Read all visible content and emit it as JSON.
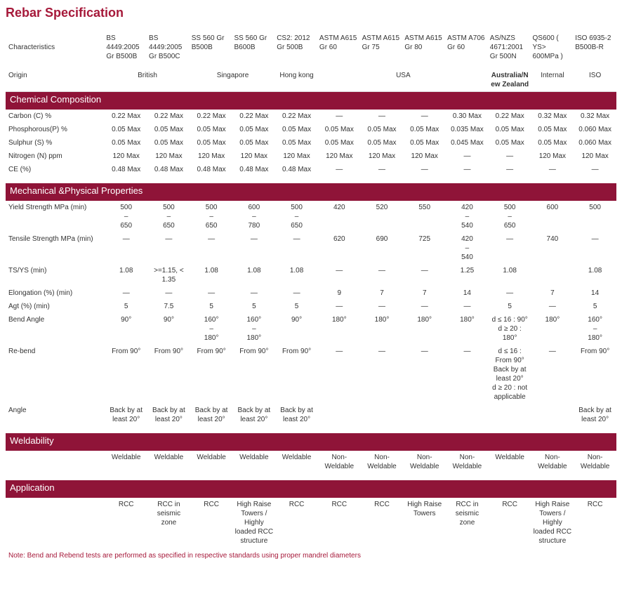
{
  "title": "Rebar Specification",
  "specs": [
    "BS 4449:2005 Gr B500B",
    "BS 4449:2005 Gr B500C",
    "SS 560 Gr B500B",
    "SS 560 Gr B600B",
    "CS2: 2012 Gr 500B",
    "ASTM A615 Gr 60",
    "ASTM A615 Gr 75",
    "ASTM A615 Gr 80",
    "ASTM A706 Gr 60",
    "AS/NZS 4671:2001 Gr 500N",
    "QS600 ( YS> 600MPa )",
    "ISO 6935-2 B500B-R"
  ],
  "char_label": "Characteristics",
  "origin_label": "Origin",
  "origins": {
    "british": "British",
    "singapore": "Singapore",
    "hk": "Hong kong",
    "usa": "USA",
    "anz": "Australia/New Zealand",
    "internal": "Internal",
    "iso": "ISO"
  },
  "sections": {
    "chem": "Chemical Composition",
    "mech": "Mechanical &Physical Properties",
    "weld": "Weldability",
    "app": "Application"
  },
  "chem_rows": [
    {
      "label": "Carbon (C) %",
      "v": [
        "0.22 Max",
        "0.22 Max",
        "0.22 Max",
        "0.22 Max",
        "0.22 Max",
        "—",
        "—",
        "—",
        "0.30 Max",
        "0.22 Max",
        "0.32 Max",
        "0.32 Max"
      ]
    },
    {
      "label": "Phosphorous(P) %",
      "v": [
        "0.05 Max",
        "0.05 Max",
        "0.05 Max",
        "0.05 Max",
        "0.05 Max",
        "0.05 Max",
        "0.05 Max",
        "0.05 Max",
        "0.035 Max",
        "0.05 Max",
        "0.05 Max",
        "0.060 Max"
      ]
    },
    {
      "label": "Sulphur (S) %",
      "v": [
        "0.05 Max",
        "0.05 Max",
        "0.05 Max",
        "0.05 Max",
        "0.05 Max",
        "0.05 Max",
        "0.05 Max",
        "0.05 Max",
        "0.045 Max",
        "0.05 Max",
        "0.05 Max",
        "0.060 Max"
      ]
    },
    {
      "label": "Nitrogen (N) ppm",
      "v": [
        "120 Max",
        "120 Max",
        "120 Max",
        "120 Max",
        "120 Max",
        "120 Max",
        "120 Max",
        "120 Max",
        "—",
        "—",
        "120 Max",
        "120 Max"
      ]
    },
    {
      "label": "CE (%)",
      "v": [
        "0.48 Max",
        "0.48 Max",
        "0.48 Max",
        "0.48 Max",
        "0.48 Max",
        "—",
        "—",
        "—",
        "—",
        "—",
        "—",
        "—"
      ]
    }
  ],
  "mech_rows": [
    {
      "label": "Yield Strength MPa (min)",
      "v": [
        "500\n–\n650",
        "500\n–\n650",
        "500\n–\n650",
        "600\n–\n780",
        "500\n–\n650",
        "420",
        "520",
        "550",
        "420\n–\n540",
        "500\n–\n650",
        "600",
        "500"
      ]
    },
    {
      "label": "Tensile Strength MPa (min)",
      "v": [
        "—",
        "—",
        "—",
        "—",
        "—",
        "620",
        "690",
        "725",
        "420\n–\n540",
        "—",
        "740",
        "—"
      ]
    },
    {
      "label": "TS/YS (min)",
      "v": [
        "1.08",
        ">=1.15, < 1.35",
        "1.08",
        "1.08",
        "1.08",
        "—",
        "—",
        "—",
        "1.25",
        "1.08",
        "",
        "1.08"
      ]
    },
    {
      "label": "Elongation (%) (min)",
      "v": [
        "—",
        "—",
        "—",
        "—",
        "—",
        "9",
        "7",
        "7",
        "14",
        "—",
        "7",
        "14"
      ]
    },
    {
      "label": "Agt (%) (min)",
      "v": [
        "5",
        "7.5",
        "5",
        "5",
        "5",
        "—",
        "—",
        "—",
        "—",
        "5",
        "—",
        "5"
      ]
    },
    {
      "label": "Bend Angle",
      "v": [
        "90°",
        "90°",
        "160°\n–\n180°",
        "160°\n–\n180°",
        "90°",
        "180°",
        "180°",
        "180°",
        "180°",
        "d ≤ 16 : 90°\nd ≥ 20 : 180°",
        "180°",
        "160°\n–\n180°"
      ]
    },
    {
      "label": "Re-bend",
      "v": [
        "From 90°",
        "From 90°",
        "From 90°",
        "From 90°",
        "From 90°",
        "—",
        "—",
        "—",
        "—",
        "d ≤ 16 : From 90° Back by at least 20°\nd ≥ 20 : not applicable",
        "—",
        "From 90°"
      ]
    },
    {
      "label": "Angle",
      "v": [
        "Back by at least 20°",
        "Back by at least 20°",
        "Back by at least 20°",
        "Back by at least 20°",
        "Back by at least 20°",
        "",
        "",
        "",
        "",
        "",
        "",
        "Back by at least 20°"
      ]
    }
  ],
  "weld_row": [
    "Weldable",
    "Weldable",
    "Weldable",
    "Weldable",
    "Weldable",
    "Non-Weldable",
    "Non-Weldable",
    "Non-Weldable",
    "Non-Weldable",
    "Weldable",
    "Non-Weldable",
    "Non-Weldable"
  ],
  "app_row": [
    "RCC",
    "RCC in seismic zone",
    "RCC",
    "High Raise Towers / Highly loaded RCC structure",
    "RCC",
    "RCC",
    "RCC",
    "High Raise Towers",
    "RCC in seismic zone",
    "RCC",
    "High Raise Towers / Highly loaded RCC structure",
    "RCC"
  ],
  "note": "Note: Bend and Rebend tests are performed as specified in respective standards using proper mandrel diameters"
}
